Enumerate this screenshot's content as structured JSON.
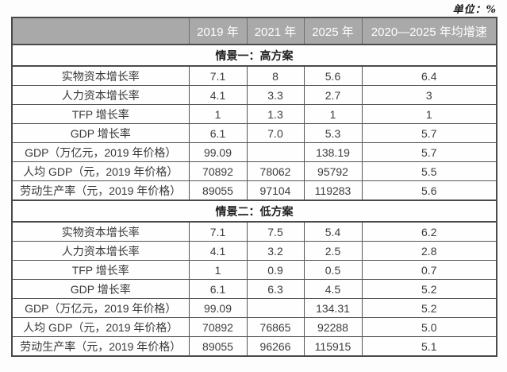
{
  "unit_label": "单位：%",
  "colors": {
    "header_bg": "#a9a9a9",
    "header_text": "#ffffff",
    "border": "#555555",
    "cell_text": "#3c3c3c",
    "page_bg": "#fdfdfd"
  },
  "table": {
    "columns": [
      "",
      "2019 年",
      "2021 年",
      "2025 年",
      "2020—2025 年均增速"
    ],
    "sections": [
      {
        "title": "情景一：高方案",
        "rows": [
          {
            "label": "实物资本增长率",
            "values": [
              "7.1",
              "8",
              "5.6",
              "6.4"
            ]
          },
          {
            "label": "人力资本增长率",
            "values": [
              "4.1",
              "3.3",
              "2.7",
              "3"
            ]
          },
          {
            "label": "TFP 增长率",
            "values": [
              "1",
              "1.3",
              "1",
              "1"
            ]
          },
          {
            "label": "GDP 增长率",
            "values": [
              "6.1",
              "7.0",
              "5.3",
              "5.7"
            ]
          },
          {
            "label": "GDP（万亿元，2019 年价格）",
            "values": [
              "99.09",
              "",
              "138.19",
              "5.7"
            ]
          },
          {
            "label": "人均 GDP（元，2019 年价格）",
            "values": [
              "70892",
              "78062",
              "95792",
              "5.5"
            ]
          },
          {
            "label": "劳动生产率（元，2019 年价格）",
            "values": [
              "89055",
              "97104",
              "119283",
              "5.6"
            ]
          }
        ]
      },
      {
        "title": "情景二：低方案",
        "rows": [
          {
            "label": "实物资本增长率",
            "values": [
              "7.1",
              "7.5",
              "5.4",
              "6.2"
            ]
          },
          {
            "label": "人力资本增长率",
            "values": [
              "4.1",
              "3.2",
              "2.5",
              "2.8"
            ]
          },
          {
            "label": "TFP 增长率",
            "values": [
              "1",
              "0.9",
              "0.5",
              "0.7"
            ]
          },
          {
            "label": "GDP 增长率",
            "values": [
              "6.1",
              "6.3",
              "4.5",
              "5.2"
            ]
          },
          {
            "label": "GDP（万亿元，2019 年价格）",
            "values": [
              "99.09",
              "",
              "134.31",
              "5.2"
            ]
          },
          {
            "label": "人均 GDP（元，2019 年价格）",
            "values": [
              "70892",
              "76865",
              "92288",
              "5.0"
            ]
          },
          {
            "label": "劳动生产率（元，2019 年价格）",
            "values": [
              "89055",
              "96266",
              "115915",
              "5.1"
            ]
          }
        ]
      }
    ]
  }
}
